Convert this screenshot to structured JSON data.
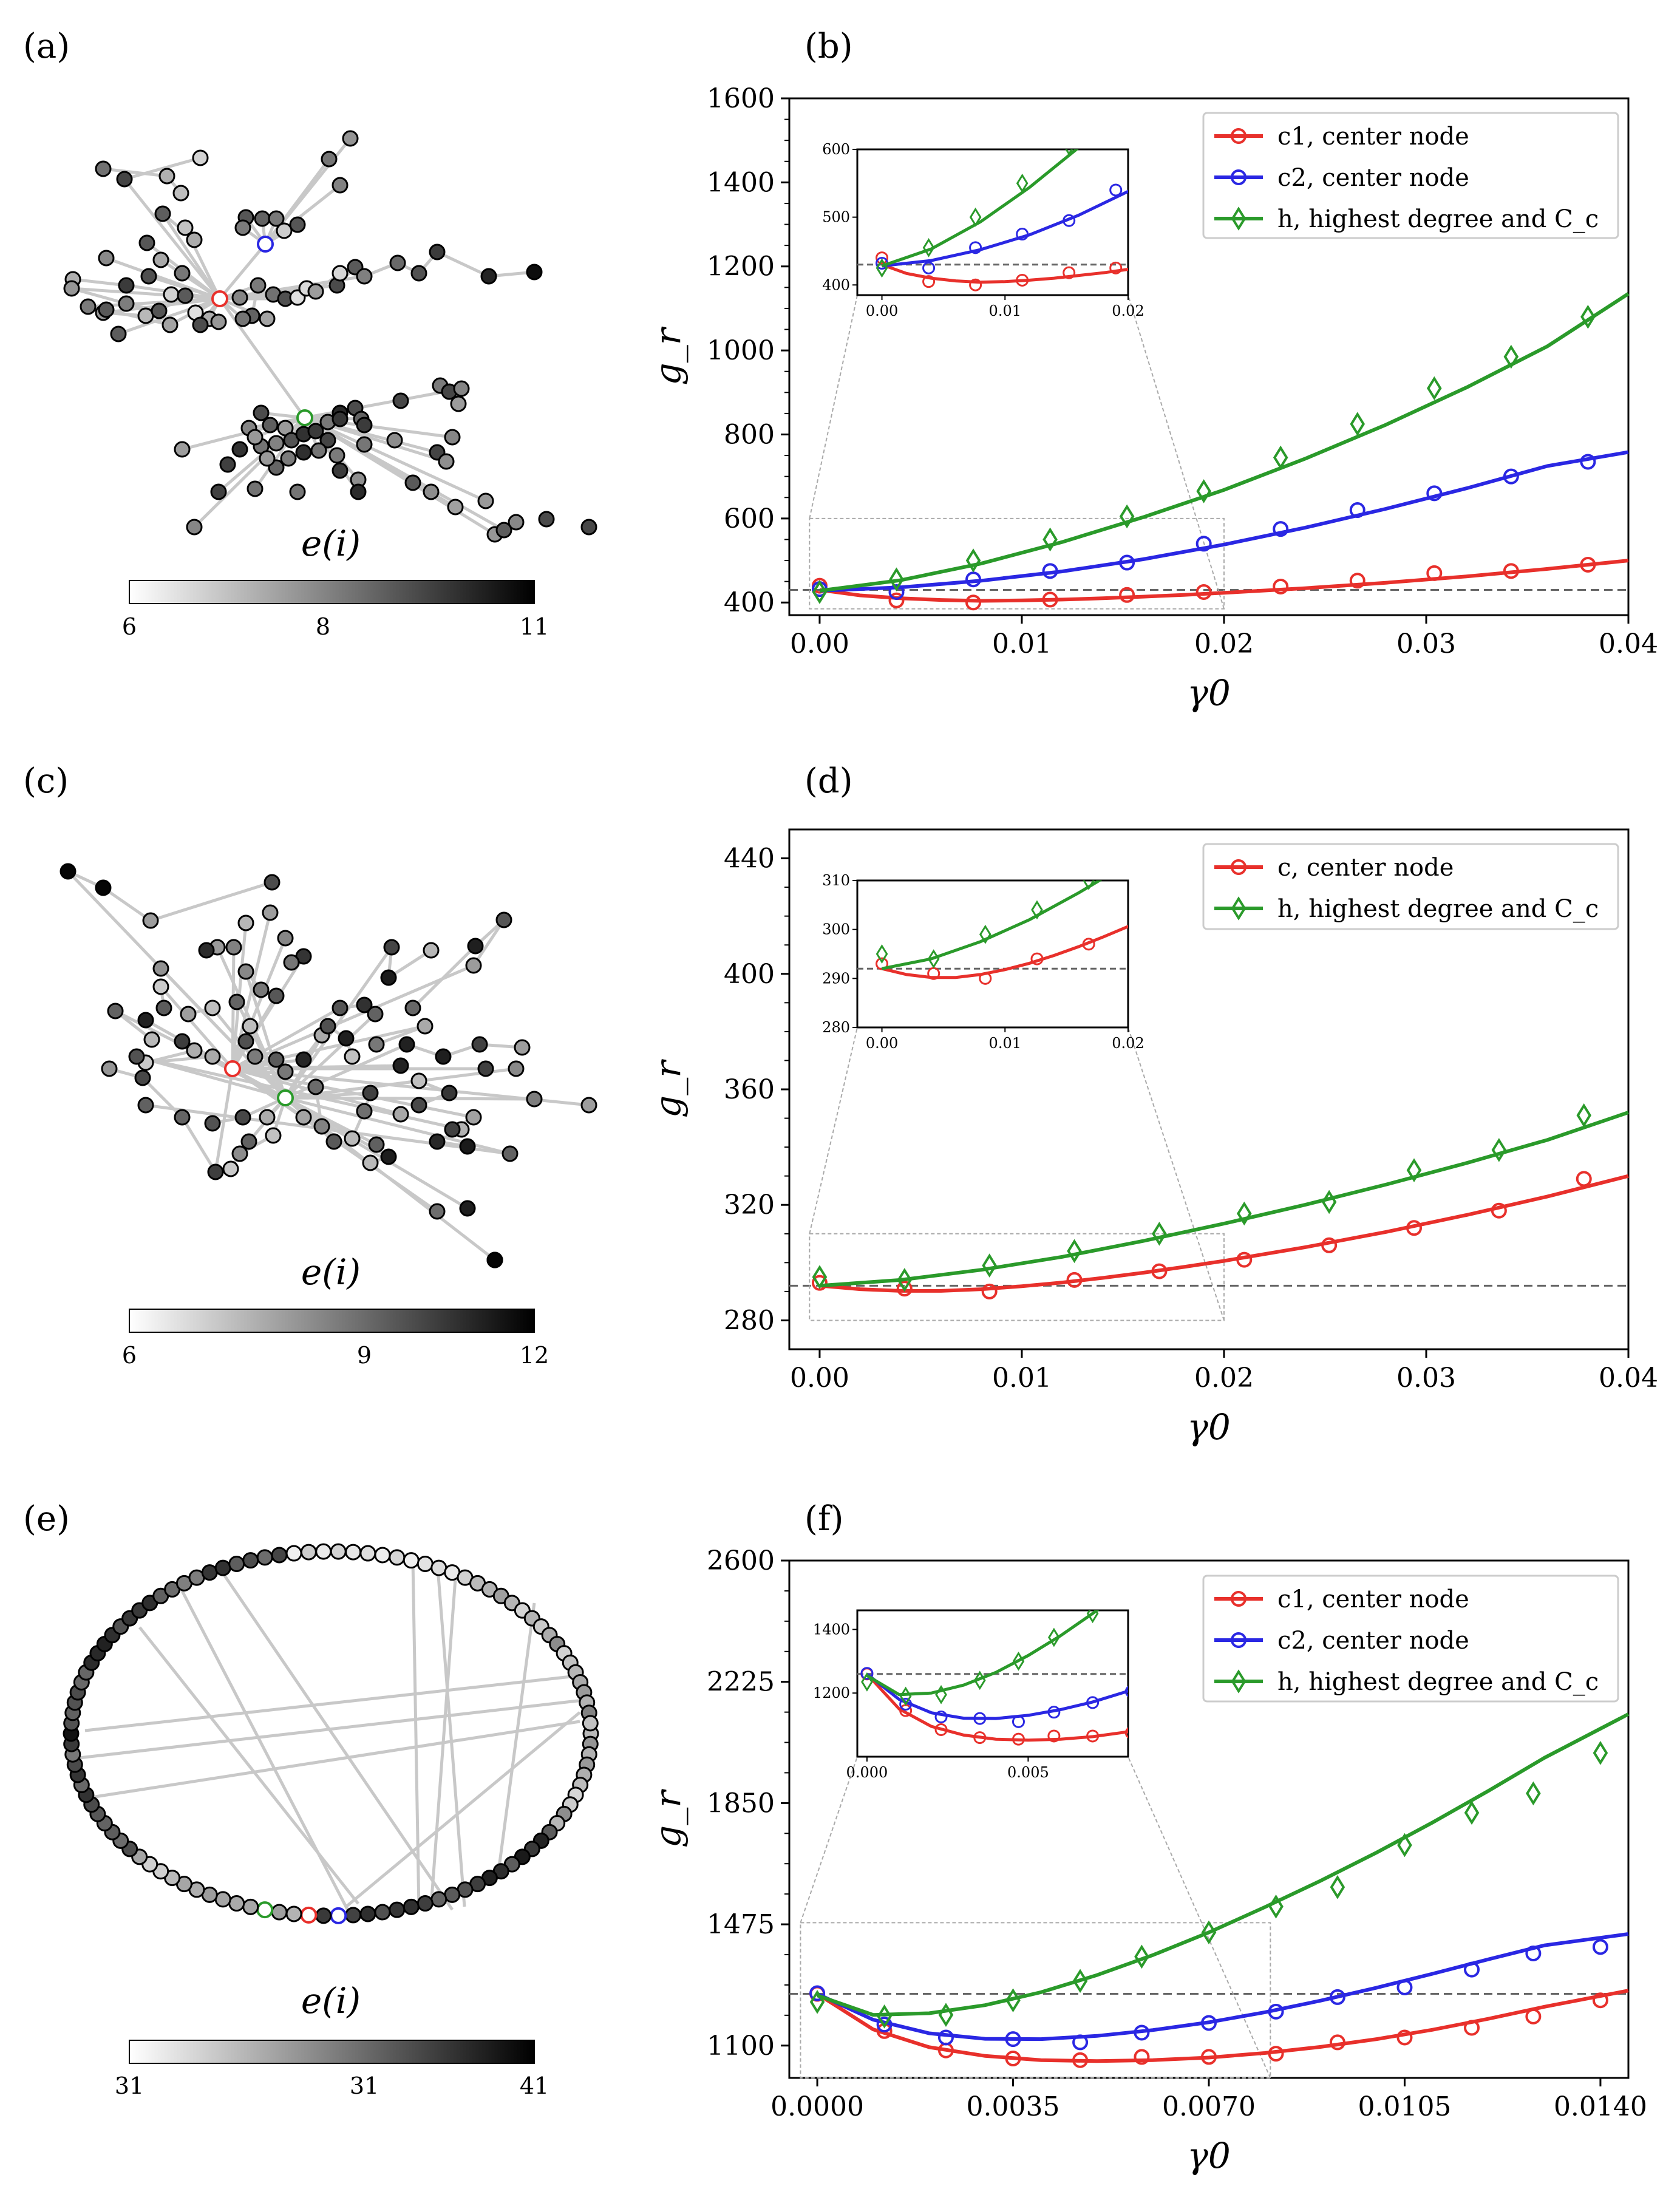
{
  "panels": [
    "(a)",
    "(b)",
    "(c)",
    "(d)",
    "(e)",
    "(f)"
  ],
  "colorbar_label": "e(i)",
  "colors": {
    "red": "#e8302b",
    "blue": "#2a27e3",
    "green": "#2a9a2a",
    "dash": "#666666",
    "edge": "#c8c8c8"
  },
  "networks": [
    {
      "panel": "(a)",
      "colorbar_ticks": [
        "6",
        "8",
        "11"
      ]
    },
    {
      "panel": "(c)",
      "colorbar_ticks": [
        "6",
        "9",
        "12"
      ]
    },
    {
      "panel": "(e)",
      "colorbar_ticks": [
        "31",
        "31",
        "41"
      ]
    }
  ],
  "chart_data": [
    {
      "panel": "(b)",
      "type": "line",
      "xlabel": "γ0",
      "ylabel": "g_r",
      "xlim": [
        -0.0015,
        0.04
      ],
      "ylim": [
        370,
        1600
      ],
      "xticks": [
        0.0,
        0.01,
        0.02,
        0.03,
        0.04
      ],
      "xtick_labels": [
        "0.00",
        "0.01",
        "0.02",
        "0.03",
        "0.04"
      ],
      "yticks": [
        400,
        600,
        800,
        1000,
        1200,
        1400,
        1600
      ],
      "ytick_labels": [
        "400",
        "600",
        "800",
        "1000",
        "1200",
        "1400",
        "1600"
      ],
      "baseline": 430,
      "series": [
        {
          "name": "c1, center node",
          "color": "red",
          "marker": "circle",
          "x": [
            0.0,
            0.0038,
            0.0076,
            0.0114,
            0.0152,
            0.019,
            0.0228,
            0.0266,
            0.0304,
            0.0342,
            0.038
          ],
          "y": [
            440,
            405,
            400,
            407,
            418,
            425,
            438,
            452,
            470,
            475,
            490
          ],
          "curve_x": [
            0,
            0.002,
            0.004,
            0.006,
            0.008,
            0.01,
            0.012,
            0.014,
            0.016,
            0.018,
            0.02,
            0.024,
            0.028,
            0.032,
            0.036,
            0.04
          ],
          "curve_y": [
            430,
            417,
            410,
            406,
            404,
            405,
            407,
            410,
            414,
            418,
            423,
            434,
            447,
            462,
            480,
            500
          ]
        },
        {
          "name": "c2, center node",
          "color": "blue",
          "marker": "circle",
          "x": [
            0.0,
            0.0038,
            0.0076,
            0.0114,
            0.0152,
            0.019,
            0.0228,
            0.0266,
            0.0304,
            0.0342,
            0.038
          ],
          "y": [
            432,
            425,
            455,
            475,
            495,
            540,
            575,
            620,
            660,
            700,
            735
          ],
          "curve_x": [
            0,
            0.004,
            0.008,
            0.012,
            0.016,
            0.02,
            0.024,
            0.028,
            0.032,
            0.036,
            0.04
          ],
          "curve_y": [
            428,
            436,
            452,
            474,
            503,
            538,
            578,
            623,
            672,
            725,
            758
          ]
        },
        {
          "name": "h, highest degree and C_c",
          "color": "green",
          "marker": "diamond",
          "x": [
            0.0,
            0.0038,
            0.0076,
            0.0114,
            0.0152,
            0.019,
            0.0228,
            0.0266,
            0.0304,
            0.0342,
            0.038
          ],
          "y": [
            425,
            455,
            500,
            550,
            605,
            665,
            745,
            825,
            910,
            985,
            1080
          ],
          "curve_x": [
            0,
            0.004,
            0.008,
            0.012,
            0.016,
            0.02,
            0.024,
            0.028,
            0.032,
            0.036,
            0.04
          ],
          "curve_y": [
            428,
            453,
            493,
            544,
            603,
            668,
            742,
            823,
            912,
            1010,
            1135
          ]
        }
      ],
      "inset": {
        "xlim": [
          -0.002,
          0.02
        ],
        "ylim": [
          385,
          600
        ],
        "xticks": [
          0.0,
          0.01,
          0.02
        ],
        "xtick_labels": [
          "0.00",
          "0.01",
          "0.02"
        ],
        "yticks": [
          400,
          500,
          600
        ],
        "ytick_labels": [
          "400",
          "500",
          "600"
        ],
        "zoom_box": {
          "x": [
            -0.0005,
            0.02
          ],
          "y": [
            385,
            600
          ]
        }
      }
    },
    {
      "panel": "(d)",
      "type": "line",
      "xlabel": "γ0",
      "ylabel": "g_r",
      "xlim": [
        -0.0015,
        0.04
      ],
      "ylim": [
        270,
        450
      ],
      "xticks": [
        0.0,
        0.01,
        0.02,
        0.03,
        0.04
      ],
      "xtick_labels": [
        "0.00",
        "0.01",
        "0.02",
        "0.03",
        "0.04"
      ],
      "yticks": [
        280,
        320,
        360,
        400,
        440
      ],
      "ytick_labels": [
        "280",
        "320",
        "360",
        "400",
        "440"
      ],
      "baseline": 292,
      "series": [
        {
          "name": "c, center node",
          "color": "red",
          "marker": "circle",
          "x": [
            0.0,
            0.0042,
            0.0084,
            0.0126,
            0.0168,
            0.021,
            0.0252,
            0.0294,
            0.0336,
            0.0378
          ],
          "y": [
            293,
            291,
            290,
            294,
            297,
            301,
            306,
            312,
            318,
            329
          ],
          "curve_x": [
            0,
            0.002,
            0.004,
            0.006,
            0.008,
            0.01,
            0.012,
            0.014,
            0.016,
            0.018,
            0.02,
            0.024,
            0.028,
            0.032,
            0.036,
            0.04
          ],
          "curve_y": [
            292,
            290.8,
            290.2,
            290.2,
            290.8,
            291.8,
            293.1,
            294.7,
            296.5,
            298.5,
            300.6,
            305.3,
            310.6,
            316.5,
            322.9,
            330
          ]
        },
        {
          "name": "h, highest degree and C_c",
          "color": "green",
          "marker": "diamond",
          "x": [
            0.0,
            0.0042,
            0.0084,
            0.0126,
            0.0168,
            0.021,
            0.0252,
            0.0294,
            0.0336,
            0.0378
          ],
          "y": [
            295,
            294,
            299,
            304,
            310,
            317,
            321,
            332,
            339,
            351
          ],
          "curve_x": [
            0,
            0.004,
            0.008,
            0.012,
            0.016,
            0.02,
            0.024,
            0.028,
            0.032,
            0.036,
            0.04
          ],
          "curve_y": [
            292,
            294,
            297.5,
            302,
            307.5,
            313.5,
            320,
            327,
            334.5,
            342.5,
            352
          ]
        }
      ],
      "inset": {
        "xlim": [
          -0.002,
          0.02
        ],
        "ylim": [
          280,
          310
        ],
        "xticks": [
          0.0,
          0.01,
          0.02
        ],
        "xtick_labels": [
          "0.00",
          "0.01",
          "0.02"
        ],
        "yticks": [
          280,
          290,
          300,
          310
        ],
        "ytick_labels": [
          "280",
          "290",
          "300",
          "310"
        ],
        "zoom_box": {
          "x": [
            -0.0005,
            0.02
          ],
          "y": [
            280,
            310
          ]
        }
      }
    },
    {
      "panel": "(f)",
      "type": "line",
      "xlabel": "γ0",
      "ylabel": "g_r",
      "xlim": [
        -0.0005,
        0.0145
      ],
      "ylim": [
        1000,
        2600
      ],
      "xticks": [
        0.0,
        0.0035,
        0.007,
        0.0105,
        0.014
      ],
      "xtick_labels": [
        "0.0000",
        "0.0035",
        "0.0070",
        "0.0105",
        "0.0140"
      ],
      "yticks": [
        1100,
        1475,
        1850,
        2225,
        2600
      ],
      "ytick_labels": [
        "1100",
        "1475",
        "1850",
        "2225",
        "2600"
      ],
      "baseline": 1260,
      "series": [
        {
          "name": "c1, center node",
          "color": "red",
          "marker": "circle",
          "x": [
            0.0,
            0.0012,
            0.0023,
            0.0035,
            0.0047,
            0.0058,
            0.007,
            0.0082,
            0.0093,
            0.0105,
            0.0117,
            0.0128,
            0.014
          ],
          "y": [
            1260,
            1145,
            1085,
            1060,
            1055,
            1065,
            1065,
            1075,
            1110,
            1125,
            1155,
            1190,
            1240
          ],
          "curve_x": [
            0,
            0.001,
            0.002,
            0.003,
            0.004,
            0.005,
            0.006,
            0.007,
            0.008,
            0.009,
            0.01,
            0.011,
            0.012,
            0.013,
            0.0145
          ],
          "curve_y": [
            1260,
            1150,
            1095,
            1068,
            1055,
            1052,
            1055,
            1063,
            1077,
            1096,
            1120,
            1149,
            1183,
            1220,
            1270
          ]
        },
        {
          "name": "c2, center node",
          "color": "blue",
          "marker": "circle",
          "x": [
            0.0,
            0.0012,
            0.0023,
            0.0035,
            0.0047,
            0.0058,
            0.007,
            0.0082,
            0.0093,
            0.0105,
            0.0117,
            0.0128,
            0.014
          ],
          "y": [
            1262,
            1165,
            1125,
            1120,
            1110,
            1140,
            1170,
            1205,
            1250,
            1280,
            1335,
            1385,
            1405
          ],
          "curve_x": [
            0,
            0.001,
            0.002,
            0.003,
            0.004,
            0.005,
            0.006,
            0.007,
            0.008,
            0.009,
            0.01,
            0.011,
            0.012,
            0.013,
            0.0145
          ],
          "curve_y": [
            1260,
            1180,
            1138,
            1121,
            1120,
            1130,
            1148,
            1172,
            1203,
            1239,
            1279,
            1322,
            1367,
            1410,
            1445
          ]
        },
        {
          "name": "h, highest degree and C_c",
          "color": "green",
          "marker": "diamond",
          "x": [
            0.0,
            0.0012,
            0.0023,
            0.0035,
            0.0047,
            0.0058,
            0.007,
            0.0082,
            0.0093,
            0.0105,
            0.0117,
            0.0128,
            0.014
          ],
          "y": [
            1235,
            1190,
            1195,
            1240,
            1300,
            1375,
            1450,
            1530,
            1590,
            1720,
            1820,
            1880,
            2005
          ],
          "curve_x": [
            0,
            0.001,
            0.002,
            0.003,
            0.004,
            0.005,
            0.006,
            0.007,
            0.008,
            0.009,
            0.01,
            0.011,
            0.012,
            0.013,
            0.0145
          ],
          "curve_y": [
            1255,
            1195,
            1200,
            1225,
            1265,
            1318,
            1380,
            1450,
            1528,
            1610,
            1697,
            1790,
            1888,
            1990,
            2125
          ]
        }
      ],
      "inset": {
        "xlim": [
          -0.0003,
          0.0081
        ],
        "ylim": [
          1000,
          1460
        ],
        "xticks": [
          0.0,
          0.005
        ],
        "xtick_labels": [
          "0.000",
          "0.005"
        ],
        "yticks": [
          1200,
          1400
        ],
        "ytick_labels": [
          "1200",
          "1400"
        ],
        "zoom_box": {
          "x": [
            -0.0003,
            0.0081
          ],
          "y": [
            1000,
            1480
          ]
        }
      }
    }
  ]
}
